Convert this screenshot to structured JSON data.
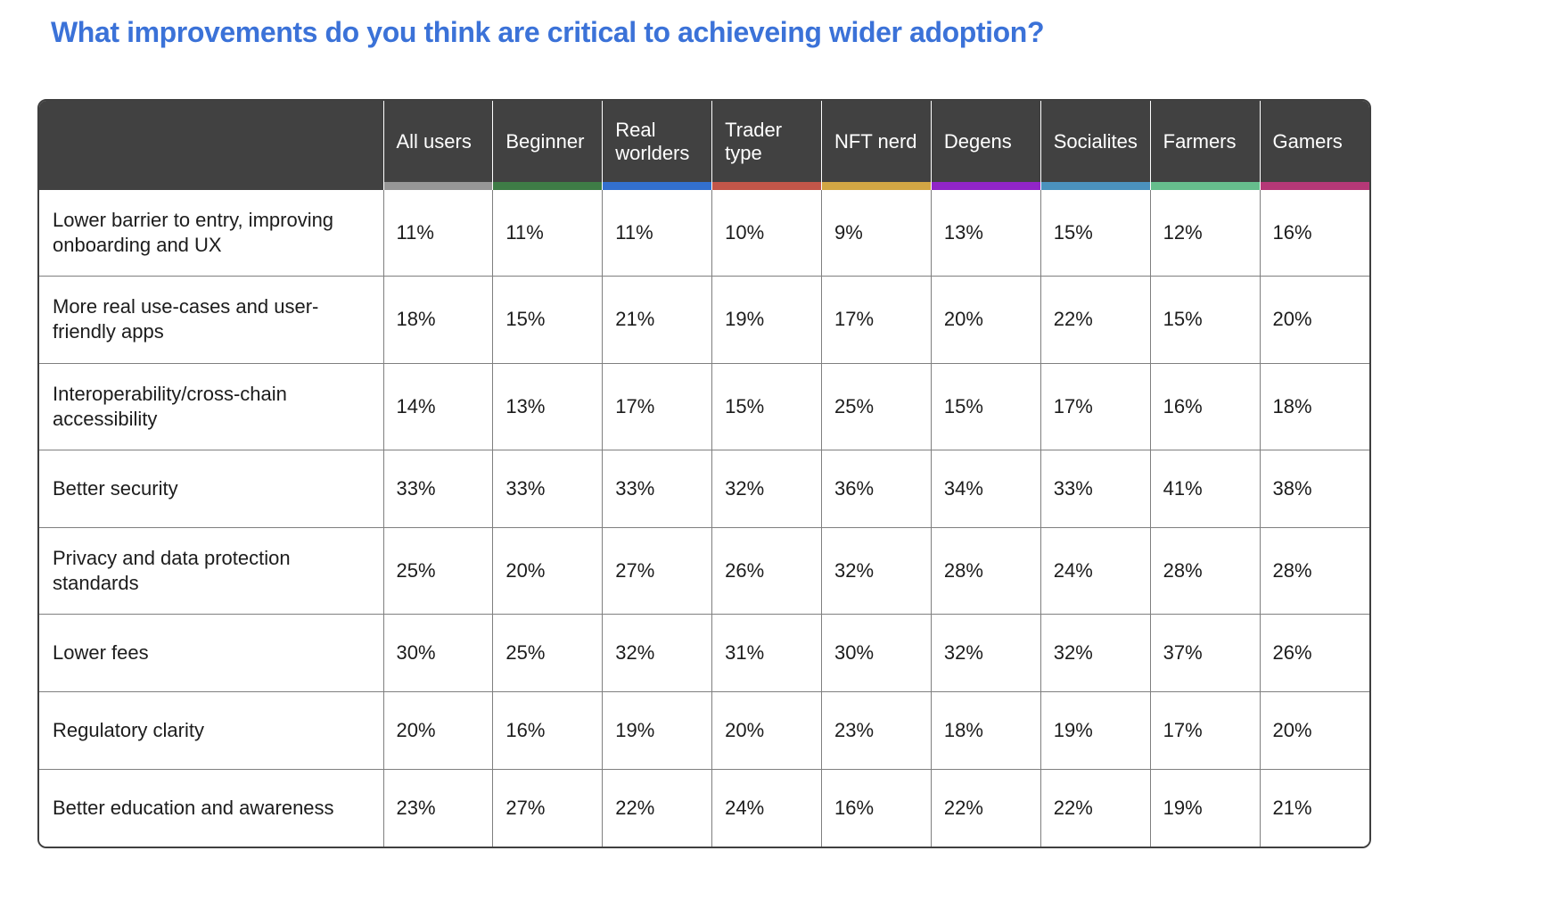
{
  "page": {
    "title": "What improvements do you think are critical to achieveing wider adoption?"
  },
  "theme": {
    "title_color": "#3B72D8",
    "header_bg": "#414141",
    "header_text": "#FFFFFF",
    "grid_line": "#7F7F7F",
    "outer_border": "#3F3F3F"
  },
  "chart_data": {
    "type": "table",
    "title": "What improvements do you think are critical to achieveing wider adoption?",
    "legend_position": "top-header-underlines",
    "columns": [
      {
        "label": "All users",
        "color": "#969696"
      },
      {
        "label": "Beginner",
        "color": "#3E7C46"
      },
      {
        "label": "Real worlders",
        "color": "#3370CE"
      },
      {
        "label": "Trader type",
        "color": "#C25649"
      },
      {
        "label": "NFT nerd",
        "color": "#D2A644"
      },
      {
        "label": "Degens",
        "color": "#9125C8"
      },
      {
        "label": "Socialites",
        "color": "#4B92BE"
      },
      {
        "label": "Farmers",
        "color": "#66BE8D"
      },
      {
        "label": "Gamers",
        "color": "#B53877"
      }
    ],
    "rows": [
      {
        "label": "Lower barrier to entry, improving onboarding and UX",
        "values": [
          "11%",
          "11%",
          "11%",
          "10%",
          "9%",
          "13%",
          "15%",
          "12%",
          "16%"
        ]
      },
      {
        "label": "More real use-cases and user-friendly apps",
        "values": [
          "18%",
          "15%",
          "21%",
          "19%",
          "17%",
          "20%",
          "22%",
          "15%",
          "20%"
        ]
      },
      {
        "label": "Interoperability/cross-chain accessibility",
        "values": [
          "14%",
          "13%",
          "17%",
          "15%",
          "25%",
          "15%",
          "17%",
          "16%",
          "18%"
        ]
      },
      {
        "label": "Better security",
        "values": [
          "33%",
          "33%",
          "33%",
          "32%",
          "36%",
          "34%",
          "33%",
          "41%",
          "38%"
        ]
      },
      {
        "label": "Privacy and data protection standards",
        "values": [
          "25%",
          "20%",
          "27%",
          "26%",
          "32%",
          "28%",
          "24%",
          "28%",
          "28%"
        ]
      },
      {
        "label": "Lower fees",
        "values": [
          "30%",
          "25%",
          "32%",
          "31%",
          "30%",
          "32%",
          "32%",
          "37%",
          "26%"
        ]
      },
      {
        "label": "Regulatory clarity",
        "values": [
          "20%",
          "16%",
          "19%",
          "20%",
          "23%",
          "18%",
          "19%",
          "17%",
          "20%"
        ]
      },
      {
        "label": "Better education and awareness",
        "values": [
          "23%",
          "27%",
          "22%",
          "24%",
          "16%",
          "22%",
          "22%",
          "19%",
          "21%"
        ]
      }
    ]
  }
}
